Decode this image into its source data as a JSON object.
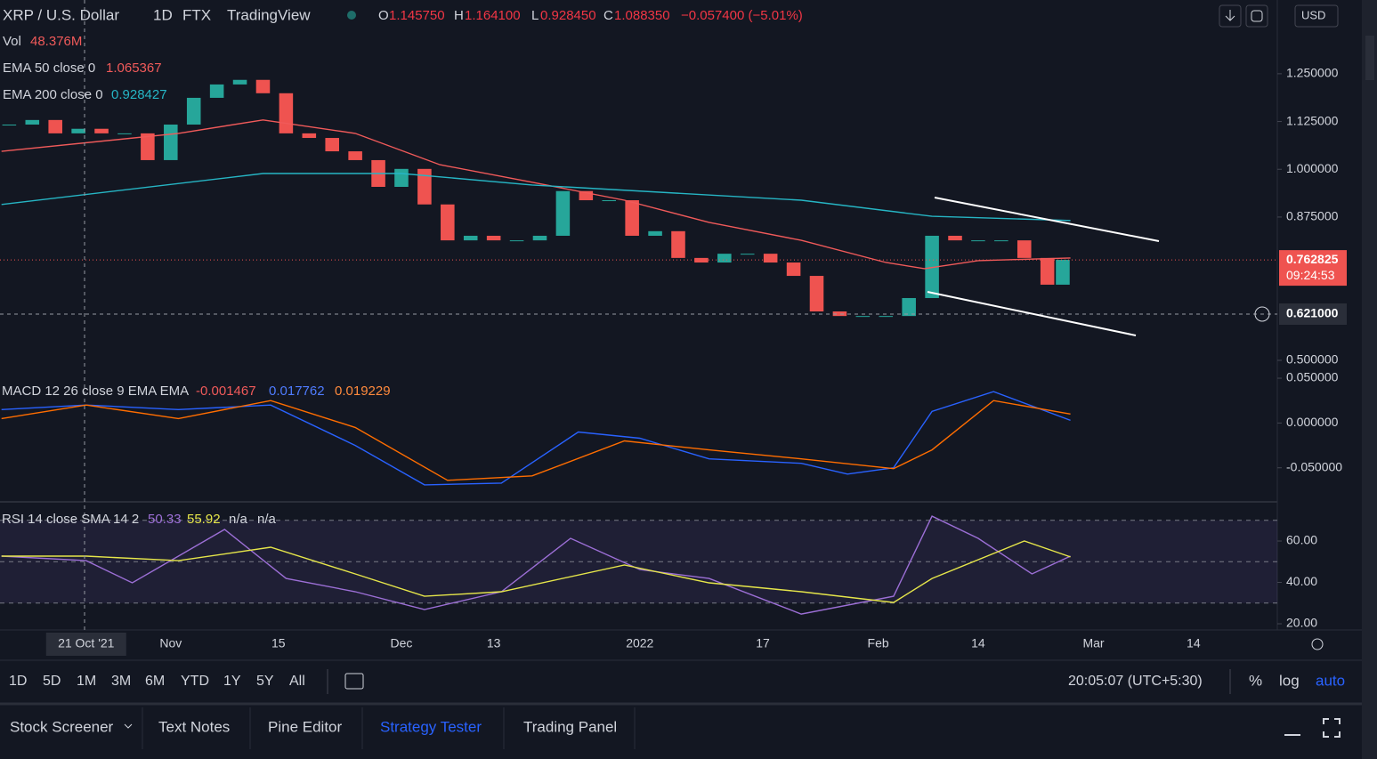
{
  "header": {
    "symbol": "XRP / U.S. Dollar",
    "interval": "1D",
    "exchange": "FTX",
    "source": "TradingView",
    "ohlc": [
      {
        "k": "O",
        "v": "1.145750"
      },
      {
        "k": "H",
        "v": "1.164100"
      },
      {
        "k": "L",
        "v": "0.928450"
      },
      {
        "k": "C",
        "v": "1.088350"
      }
    ],
    "change": "−0.057400 (−5.01%)",
    "currency": "USD",
    "vol_label": "Vol",
    "vol_value": "48.376M"
  },
  "chart_data": [
    {
      "type": "candlestick",
      "up_color": "#26a69a",
      "down_color": "#ef5350",
      "x": [
        -10,
        -7,
        -4,
        -1,
        2,
        5,
        8,
        11,
        14,
        17,
        20,
        23,
        26,
        29,
        32,
        35,
        38,
        41,
        44,
        47,
        50,
        53,
        56,
        59,
        62,
        65,
        68,
        71,
        74,
        77,
        80,
        83,
        86,
        89,
        92,
        95,
        98,
        101,
        104,
        107,
        110,
        113,
        116,
        119,
        122,
        125,
        127
      ],
      "values": [
        1.117,
        1.129,
        1.094,
        1.106,
        1.094,
        1.094,
        1.024,
        1.117,
        1.187,
        1.222,
        1.234,
        1.199,
        1.094,
        1.082,
        1.047,
        1.024,
        0.954,
        1.001,
        0.908,
        0.814,
        0.826,
        0.814,
        0.814,
        0.826,
        0.943,
        0.919,
        0.919,
        0.826,
        0.838,
        0.768,
        0.756,
        0.779,
        0.779,
        0.756,
        0.721,
        0.628,
        0.616,
        0.616,
        0.616,
        0.663,
        0.826,
        0.814,
        0.814,
        0.814,
        0.768,
        0.698,
        0.763
      ],
      "lines": [
        {
          "name": "EMA 50 close 0",
          "color": "#f05a5a",
          "last": 1.065367,
          "x": [
            -11,
            12,
            23,
            35,
            46,
            58,
            70,
            81,
            93,
            104,
            109,
            116,
            128
          ],
          "values": [
            1.047,
            1.094,
            1.129,
            1.094,
            1.012,
            0.966,
            0.919,
            0.861,
            0.814,
            0.756,
            0.74,
            0.761,
            0.768
          ]
        },
        {
          "name": "EMA 200 close 0",
          "color": "#26b5c4",
          "last": 0.928427,
          "x": [
            -11,
            23,
            41,
            58,
            93,
            110,
            128
          ],
          "values": [
            0.908,
            0.989,
            0.989,
            0.959,
            0.919,
            0.877,
            0.866
          ]
        }
      ],
      "last_price": 0.762825,
      "countdown": "09:24:53",
      "crosshair": {
        "value": 0.621,
        "label": "0.621000"
      },
      "ylim": [
        0.465,
        1.443
      ],
      "yticks": [
        {
          "value": 1.25,
          "label": "1.250000"
        },
        {
          "value": 1.125,
          "label": "1.125000"
        },
        {
          "value": 1.0,
          "label": "1.000000"
        },
        {
          "value": 0.875,
          "label": "0.875000"
        },
        {
          "value": 0.5,
          "label": "0.500000"
        }
      ],
      "xlim": [
        -11.2,
        154.9
      ],
      "xticks": [
        {
          "value": 0,
          "label": "21 Oct '21"
        },
        {
          "value": 11,
          "label": "Nov"
        },
        {
          "value": 25,
          "label": "15"
        },
        {
          "value": 41,
          "label": "Dec"
        },
        {
          "value": 53,
          "label": "13"
        },
        {
          "value": 72,
          "label": "2022"
        },
        {
          "value": 88,
          "label": "17"
        },
        {
          "value": 103,
          "label": "Feb"
        },
        {
          "value": 116,
          "label": "14"
        },
        {
          "value": 131,
          "label": "Mar"
        },
        {
          "value": 144,
          "label": "14"
        }
      ]
    },
    {
      "type": "line",
      "title": "MACD 12 26 close 9 EMA EMA",
      "histogram_last": -0.001467,
      "series": [
        {
          "name": "MACD",
          "color": "#2962ff",
          "last": 0.017762,
          "x": [
            -11,
            0,
            12,
            24,
            35,
            44,
            54,
            64,
            72,
            81,
            93,
            99,
            105,
            110,
            118,
            128
          ],
          "values": [
            0.015,
            0.02,
            0.015,
            0.02,
            -0.025,
            -0.069,
            -0.067,
            -0.01,
            -0.017,
            -0.04,
            -0.045,
            -0.057,
            -0.05,
            0.013,
            0.035,
            0.003
          ]
        },
        {
          "name": "Signal",
          "color": "#ff6d00",
          "last": 0.019229,
          "x": [
            -11,
            0,
            12,
            24,
            35,
            47,
            58,
            70,
            81,
            93,
            105,
            110,
            118,
            128
          ],
          "values": [
            0.005,
            0.02,
            0.005,
            0.025,
            -0.005,
            -0.064,
            -0.059,
            -0.02,
            -0.03,
            -0.04,
            -0.051,
            -0.03,
            0.025,
            0.01
          ]
        }
      ],
      "ylim": [
        -0.087,
        0.055
      ],
      "yticks": [
        {
          "value": 0.05,
          "label": "0.050000"
        },
        {
          "value": 0,
          "label": "0.000000"
        },
        {
          "value": -0.05,
          "label": "-0.050000"
        }
      ]
    },
    {
      "type": "line",
      "title": "RSI 14 close SMA 14 2",
      "extra": [
        "n/a",
        "n/a"
      ],
      "levels": [
        70,
        50,
        30
      ],
      "series": [
        {
          "name": "RSI",
          "color": "#9c6fd6",
          "last": 50.33,
          "x": [
            -11,
            0,
            6,
            18,
            26,
            35,
            44,
            54,
            63,
            72,
            81,
            93,
            105,
            110,
            116,
            123,
            128
          ],
          "values": [
            52.7,
            50.5,
            39.8,
            65.6,
            41.9,
            35.5,
            26.9,
            35.5,
            61.3,
            46.2,
            41.9,
            24.7,
            33.3,
            72.0,
            61.3,
            44.1,
            52.7
          ]
        },
        {
          "name": "SMA",
          "color": "#e6e64a",
          "last": 55.92,
          "x": [
            -11,
            0,
            12,
            24,
            35,
            44,
            54,
            70,
            81,
            93,
            105,
            110,
            122,
            128
          ],
          "values": [
            52.7,
            52.7,
            50.5,
            57.0,
            44.1,
            33.3,
            35.5,
            48.4,
            39.8,
            35.5,
            30.3,
            41.9,
            60.0,
            52.3
          ]
        }
      ],
      "ylim": [
        17,
        78.5
      ],
      "yticks": [
        {
          "value": 60,
          "label": "60.00"
        },
        {
          "value": 40,
          "label": "40.00"
        },
        {
          "value": 20,
          "label": "20.00"
        }
      ]
    }
  ],
  "toolbar": {
    "ranges": [
      "1D",
      "5D",
      "1M",
      "3M",
      "6M",
      "YTD",
      "1Y",
      "5Y",
      "All"
    ],
    "clock": "20:05:07 (UTC+5:30)",
    "percent": "%",
    "log": "log",
    "auto": "auto"
  },
  "tabs": [
    "Stock Screener",
    "Text Notes",
    "Pine Editor",
    "Strategy Tester",
    "Trading Panel"
  ]
}
